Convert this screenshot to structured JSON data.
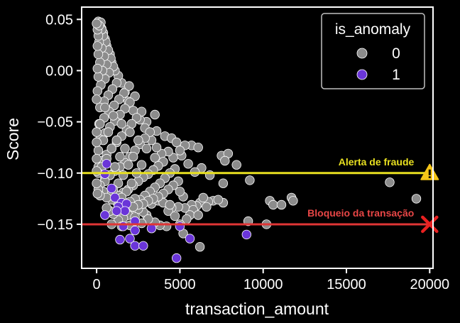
{
  "chart_data": {
    "type": "scatter",
    "xlabel": "transaction_amount",
    "ylabel": "Score",
    "xlim": [
      -900,
      20200
    ],
    "ylim": [
      -0.193,
      0.062
    ],
    "x_ticks": [
      0,
      5000,
      10000,
      15000,
      20000
    ],
    "y_ticks": [
      0.05,
      0.0,
      -0.05,
      -0.1,
      -0.15
    ],
    "y_tick_labels": [
      "0.05",
      "0.00",
      "−0.05",
      "−0.10",
      "−0.15"
    ],
    "grid": false,
    "legend": {
      "title": "is_anomaly",
      "placement": "top-right",
      "entries": [
        {
          "label": "0",
          "color": "#8c8c8c"
        },
        {
          "label": "1",
          "color": "#6a35d8"
        }
      ]
    },
    "series": [
      {
        "name": "0",
        "color": "#8c8c8c",
        "points": [
          [
            7500,
            -0.083
          ],
          [
            7900,
            -0.081
          ],
          [
            7700,
            -0.088
          ],
          [
            8400,
            -0.092
          ],
          [
            5700,
            -0.073
          ],
          [
            6100,
            -0.075
          ],
          [
            5100,
            -0.083
          ],
          [
            5500,
            -0.091
          ],
          [
            6300,
            -0.095
          ],
          [
            5900,
            -0.099
          ],
          [
            6800,
            -0.102
          ],
          [
            9200,
            -0.107
          ],
          [
            7600,
            -0.11
          ],
          [
            17600,
            -0.109
          ],
          [
            19200,
            -0.125
          ],
          [
            11700,
            -0.124
          ],
          [
            11800,
            -0.127
          ],
          [
            10400,
            -0.127
          ],
          [
            10600,
            -0.131
          ],
          [
            11100,
            -0.131
          ],
          [
            7000,
            -0.127
          ],
          [
            6700,
            -0.128
          ],
          [
            6200,
            -0.129
          ],
          [
            6400,
            -0.124
          ],
          [
            6600,
            -0.133
          ],
          [
            7600,
            -0.129
          ],
          [
            7300,
            -0.126
          ],
          [
            6000,
            -0.132
          ],
          [
            5700,
            -0.131
          ],
          [
            5300,
            -0.134
          ],
          [
            4900,
            -0.133
          ],
          [
            4500,
            -0.134
          ],
          [
            4300,
            -0.137
          ],
          [
            5800,
            -0.136
          ],
          [
            5600,
            -0.141
          ],
          [
            5400,
            -0.145
          ],
          [
            6100,
            -0.141
          ],
          [
            4700,
            -0.142
          ],
          [
            5000,
            -0.15
          ],
          [
            4200,
            -0.152
          ],
          [
            3800,
            -0.151
          ],
          [
            3500,
            -0.148
          ],
          [
            3000,
            -0.141
          ],
          [
            2800,
            -0.138
          ],
          [
            2500,
            -0.135
          ],
          [
            2100,
            -0.134
          ],
          [
            1900,
            -0.141
          ],
          [
            1600,
            -0.144
          ],
          [
            1300,
            -0.146
          ],
          [
            1000,
            -0.14
          ],
          [
            800,
            -0.137
          ],
          [
            600,
            -0.134
          ],
          [
            3300,
            -0.13
          ],
          [
            3700,
            -0.127
          ],
          [
            4000,
            -0.129
          ],
          [
            4400,
            -0.131
          ],
          [
            5200,
            -0.123
          ],
          [
            5000,
            -0.118
          ],
          [
            9100,
            -0.147
          ],
          [
            10200,
            -0.15
          ],
          [
            5200,
            -0.159
          ],
          [
            6200,
            -0.172
          ],
          [
            3100,
            -0.145
          ],
          [
            2000,
            -0.151
          ],
          [
            2700,
            -0.149
          ],
          [
            2300,
            -0.143
          ],
          [
            1500,
            -0.152
          ],
          [
            900,
            -0.15
          ],
          [
            3500,
            -0.043
          ],
          [
            3000,
            -0.05
          ],
          [
            3600,
            -0.059
          ],
          [
            4100,
            -0.064
          ],
          [
            4500,
            -0.066
          ],
          [
            4800,
            -0.07
          ],
          [
            5300,
            -0.073
          ],
          [
            5000,
            -0.078
          ],
          [
            4600,
            -0.085
          ],
          [
            4300,
            -0.079
          ],
          [
            3900,
            -0.081
          ],
          [
            3600,
            -0.075
          ],
          [
            3300,
            -0.068
          ],
          [
            2900,
            -0.056
          ],
          [
            2600,
            -0.048
          ],
          [
            2200,
            -0.039
          ],
          [
            1900,
            -0.03
          ],
          [
            1700,
            -0.021
          ],
          [
            1500,
            -0.012
          ],
          [
            1300,
            -0.005
          ],
          [
            1100,
            0.0
          ],
          [
            900,
            0.008
          ],
          [
            800,
            0.016
          ],
          [
            600,
            0.024
          ],
          [
            500,
            0.031
          ],
          [
            400,
            0.037
          ],
          [
            300,
            0.041
          ],
          [
            200,
            0.045
          ],
          [
            100,
            0.048
          ],
          [
            250,
            0.047
          ],
          [
            4000,
            -0.089
          ],
          [
            3700,
            -0.093
          ],
          [
            3400,
            -0.097
          ],
          [
            3100,
            -0.101
          ],
          [
            2800,
            -0.104
          ],
          [
            2500,
            -0.108
          ],
          [
            2200,
            -0.112
          ],
          [
            1900,
            -0.116
          ],
          [
            1600,
            -0.119
          ],
          [
            1300,
            -0.122
          ],
          [
            4700,
            -0.096
          ],
          [
            4400,
            -0.1
          ],
          [
            4100,
            -0.105
          ],
          [
            3800,
            -0.11
          ],
          [
            3500,
            -0.114
          ],
          [
            3200,
            -0.118
          ],
          [
            2900,
            -0.122
          ],
          [
            2600,
            -0.126
          ],
          [
            2300,
            -0.125
          ],
          [
            2000,
            -0.128
          ],
          [
            4900,
            -0.108
          ],
          [
            4600,
            -0.112
          ],
          [
            4300,
            -0.116
          ],
          [
            4000,
            -0.12
          ],
          [
            3700,
            -0.123
          ],
          [
            3400,
            -0.125
          ],
          [
            3100,
            -0.127
          ],
          [
            2800,
            -0.13
          ],
          [
            2500,
            -0.131
          ],
          [
            2200,
            -0.133
          ],
          [
            3200,
            -0.06
          ],
          [
            2900,
            -0.066
          ],
          [
            2600,
            -0.072
          ],
          [
            2300,
            -0.078
          ],
          [
            2000,
            -0.084
          ],
          [
            1700,
            -0.09
          ],
          [
            1400,
            -0.094
          ],
          [
            1100,
            -0.098
          ],
          [
            800,
            -0.102
          ],
          [
            500,
            -0.106
          ],
          [
            2700,
            -0.04
          ],
          [
            2400,
            -0.046
          ],
          [
            2100,
            -0.052
          ],
          [
            1800,
            -0.058
          ],
          [
            1500,
            -0.064
          ],
          [
            1200,
            -0.07
          ],
          [
            900,
            -0.076
          ],
          [
            600,
            -0.082
          ],
          [
            300,
            -0.088
          ],
          [
            100,
            -0.094
          ],
          [
            2300,
            -0.025
          ],
          [
            2000,
            -0.031
          ],
          [
            1700,
            -0.037
          ],
          [
            1400,
            -0.043
          ],
          [
            1100,
            -0.049
          ],
          [
            800,
            -0.055
          ],
          [
            500,
            -0.061
          ],
          [
            200,
            -0.067
          ],
          [
            1950,
            -0.015
          ],
          [
            1650,
            -0.022
          ],
          [
            1350,
            -0.028
          ],
          [
            1050,
            -0.034
          ],
          [
            750,
            -0.04
          ],
          [
            450,
            -0.046
          ],
          [
            150,
            -0.052
          ],
          [
            1200,
            -0.012
          ],
          [
            950,
            -0.018
          ],
          [
            700,
            -0.024
          ],
          [
            450,
            -0.03
          ],
          [
            200,
            -0.036
          ],
          [
            1000,
            0.004
          ],
          [
            750,
            -0.002
          ],
          [
            500,
            -0.008
          ],
          [
            250,
            -0.014
          ],
          [
            50,
            -0.02
          ],
          [
            850,
            0.012
          ],
          [
            600,
            0.006
          ],
          [
            350,
            0.0
          ],
          [
            100,
            -0.006
          ],
          [
            700,
            0.02
          ],
          [
            450,
            0.014
          ],
          [
            200,
            0.008
          ],
          [
            50,
            0.002
          ],
          [
            550,
            0.028
          ],
          [
            300,
            0.022
          ],
          [
            100,
            0.016
          ],
          [
            400,
            0.034
          ],
          [
            150,
            0.028
          ],
          [
            50,
            0.024
          ],
          [
            300,
            0.04
          ],
          [
            100,
            0.034
          ],
          [
            50,
            0.04
          ],
          [
            150,
            0.044
          ],
          [
            0,
            0.046
          ],
          [
            3500,
            -0.085
          ],
          [
            3000,
            -0.076
          ],
          [
            2500,
            -0.068
          ],
          [
            2000,
            -0.06
          ],
          [
            1500,
            -0.052
          ],
          [
            1000,
            -0.044
          ],
          [
            500,
            -0.036
          ],
          [
            0,
            -0.028
          ],
          [
            2700,
            -0.092
          ],
          [
            2200,
            -0.084
          ],
          [
            1700,
            -0.076
          ],
          [
            1200,
            -0.068
          ],
          [
            700,
            -0.06
          ],
          [
            200,
            -0.052
          ],
          [
            2400,
            -0.1
          ],
          [
            1900,
            -0.092
          ],
          [
            1400,
            -0.084
          ],
          [
            900,
            -0.076
          ],
          [
            400,
            -0.068
          ],
          [
            0,
            -0.06
          ],
          [
            2100,
            -0.11
          ],
          [
            1600,
            -0.102
          ],
          [
            1100,
            -0.094
          ],
          [
            600,
            -0.086
          ],
          [
            100,
            -0.078
          ],
          [
            1800,
            -0.118
          ],
          [
            1300,
            -0.11
          ],
          [
            800,
            -0.102
          ],
          [
            300,
            -0.094
          ],
          [
            0,
            -0.086
          ],
          [
            1500,
            -0.124
          ],
          [
            1000,
            -0.116
          ],
          [
            500,
            -0.108
          ],
          [
            100,
            -0.1
          ],
          [
            1200,
            -0.128
          ],
          [
            700,
            -0.12
          ],
          [
            200,
            -0.112
          ],
          [
            900,
            -0.126
          ],
          [
            400,
            -0.118
          ],
          [
            100,
            -0.116
          ],
          [
            600,
            -0.124
          ],
          [
            200,
            -0.122
          ],
          [
            50,
            -0.12
          ],
          [
            0,
            -0.11
          ],
          [
            0,
            -0.098
          ],
          [
            0,
            -0.07
          ]
        ]
      },
      {
        "name": "1",
        "color": "#6a35d8",
        "points": [
          [
            600,
            -0.091
          ],
          [
            500,
            -0.101
          ],
          [
            900,
            -0.115
          ],
          [
            1100,
            -0.124
          ],
          [
            1500,
            -0.129
          ],
          [
            1300,
            -0.133
          ],
          [
            1800,
            -0.13
          ],
          [
            1700,
            -0.137
          ],
          [
            1200,
            -0.137
          ],
          [
            500,
            -0.141
          ],
          [
            2300,
            -0.147
          ],
          [
            1600,
            -0.152
          ],
          [
            2300,
            -0.156
          ],
          [
            3300,
            -0.154
          ],
          [
            1400,
            -0.165
          ],
          [
            2000,
            -0.164
          ],
          [
            2300,
            -0.171
          ],
          [
            2800,
            -0.171
          ],
          [
            4800,
            -0.183
          ],
          [
            5600,
            -0.164
          ],
          [
            9000,
            -0.16
          ],
          [
            5000,
            -0.152
          ]
        ]
      }
    ],
    "reference_lines": [
      {
        "label": "Alerta de fraude",
        "y": -0.1,
        "color": "#e8e020",
        "text_color": "#e8e020",
        "marker": "warning-triangle"
      },
      {
        "label": "Bloqueio da transação",
        "y": -0.15,
        "color": "#e03535",
        "text_color": "#e84646",
        "marker": "x"
      }
    ]
  }
}
